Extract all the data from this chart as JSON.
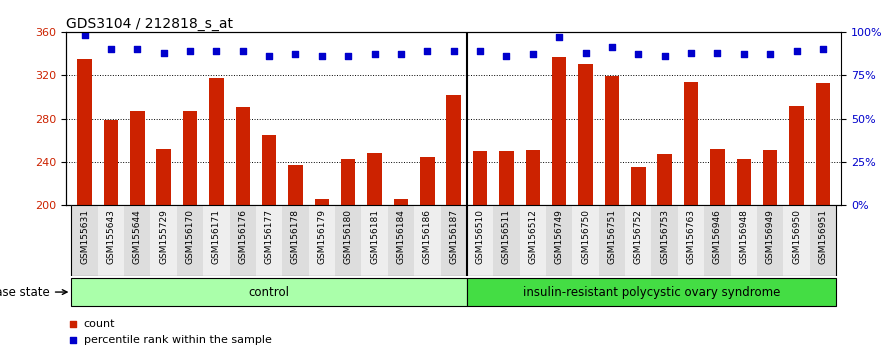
{
  "title": "GDS3104 / 212818_s_at",
  "samples": [
    "GSM155631",
    "GSM155643",
    "GSM155644",
    "GSM155729",
    "GSM156170",
    "GSM156171",
    "GSM156176",
    "GSM156177",
    "GSM156178",
    "GSM156179",
    "GSM156180",
    "GSM156181",
    "GSM156184",
    "GSM156186",
    "GSM156187",
    "GSM156510",
    "GSM156511",
    "GSM156512",
    "GSM156749",
    "GSM156750",
    "GSM156751",
    "GSM156752",
    "GSM156753",
    "GSM156763",
    "GSM156946",
    "GSM156948",
    "GSM156949",
    "GSM156950",
    "GSM156951"
  ],
  "bar_values": [
    335,
    279,
    287,
    252,
    287,
    317,
    291,
    265,
    237,
    206,
    243,
    248,
    206,
    245,
    302,
    250,
    250,
    251,
    337,
    330,
    319,
    235,
    247,
    314,
    252,
    243,
    251,
    292,
    313
  ],
  "dot_values": [
    98,
    90,
    90,
    88,
    89,
    89,
    89,
    86,
    87,
    86,
    86,
    87,
    87,
    89,
    89,
    89,
    86,
    87,
    97,
    88,
    91,
    87,
    86,
    88,
    88,
    87,
    87,
    89,
    90
  ],
  "n_control": 15,
  "ymin": 200,
  "ymax": 360,
  "yticks": [
    200,
    240,
    280,
    320,
    360
  ],
  "right_yticks": [
    0,
    25,
    50,
    75,
    100
  ],
  "right_yticklabels": [
    "0%",
    "25%",
    "50%",
    "75%",
    "100%"
  ],
  "bar_color": "#CC2200",
  "dot_color": "#0000CC",
  "control_color": "#AAFFAA",
  "disease_color": "#44DD44",
  "group_label_control": "control",
  "group_label_disease": "insulin-resistant polycystic ovary syndrome",
  "disease_state_label": "disease state",
  "legend_bar": "count",
  "legend_dot": "percentile rank within the sample",
  "axis_label_color_left": "#CC2200",
  "axis_label_color_right": "#0000CC",
  "tick_label_fontsize": 6.5,
  "title_fontsize": 10,
  "xtick_bg_odd": "#DDDDDD",
  "xtick_bg_even": "#EEEEEE"
}
